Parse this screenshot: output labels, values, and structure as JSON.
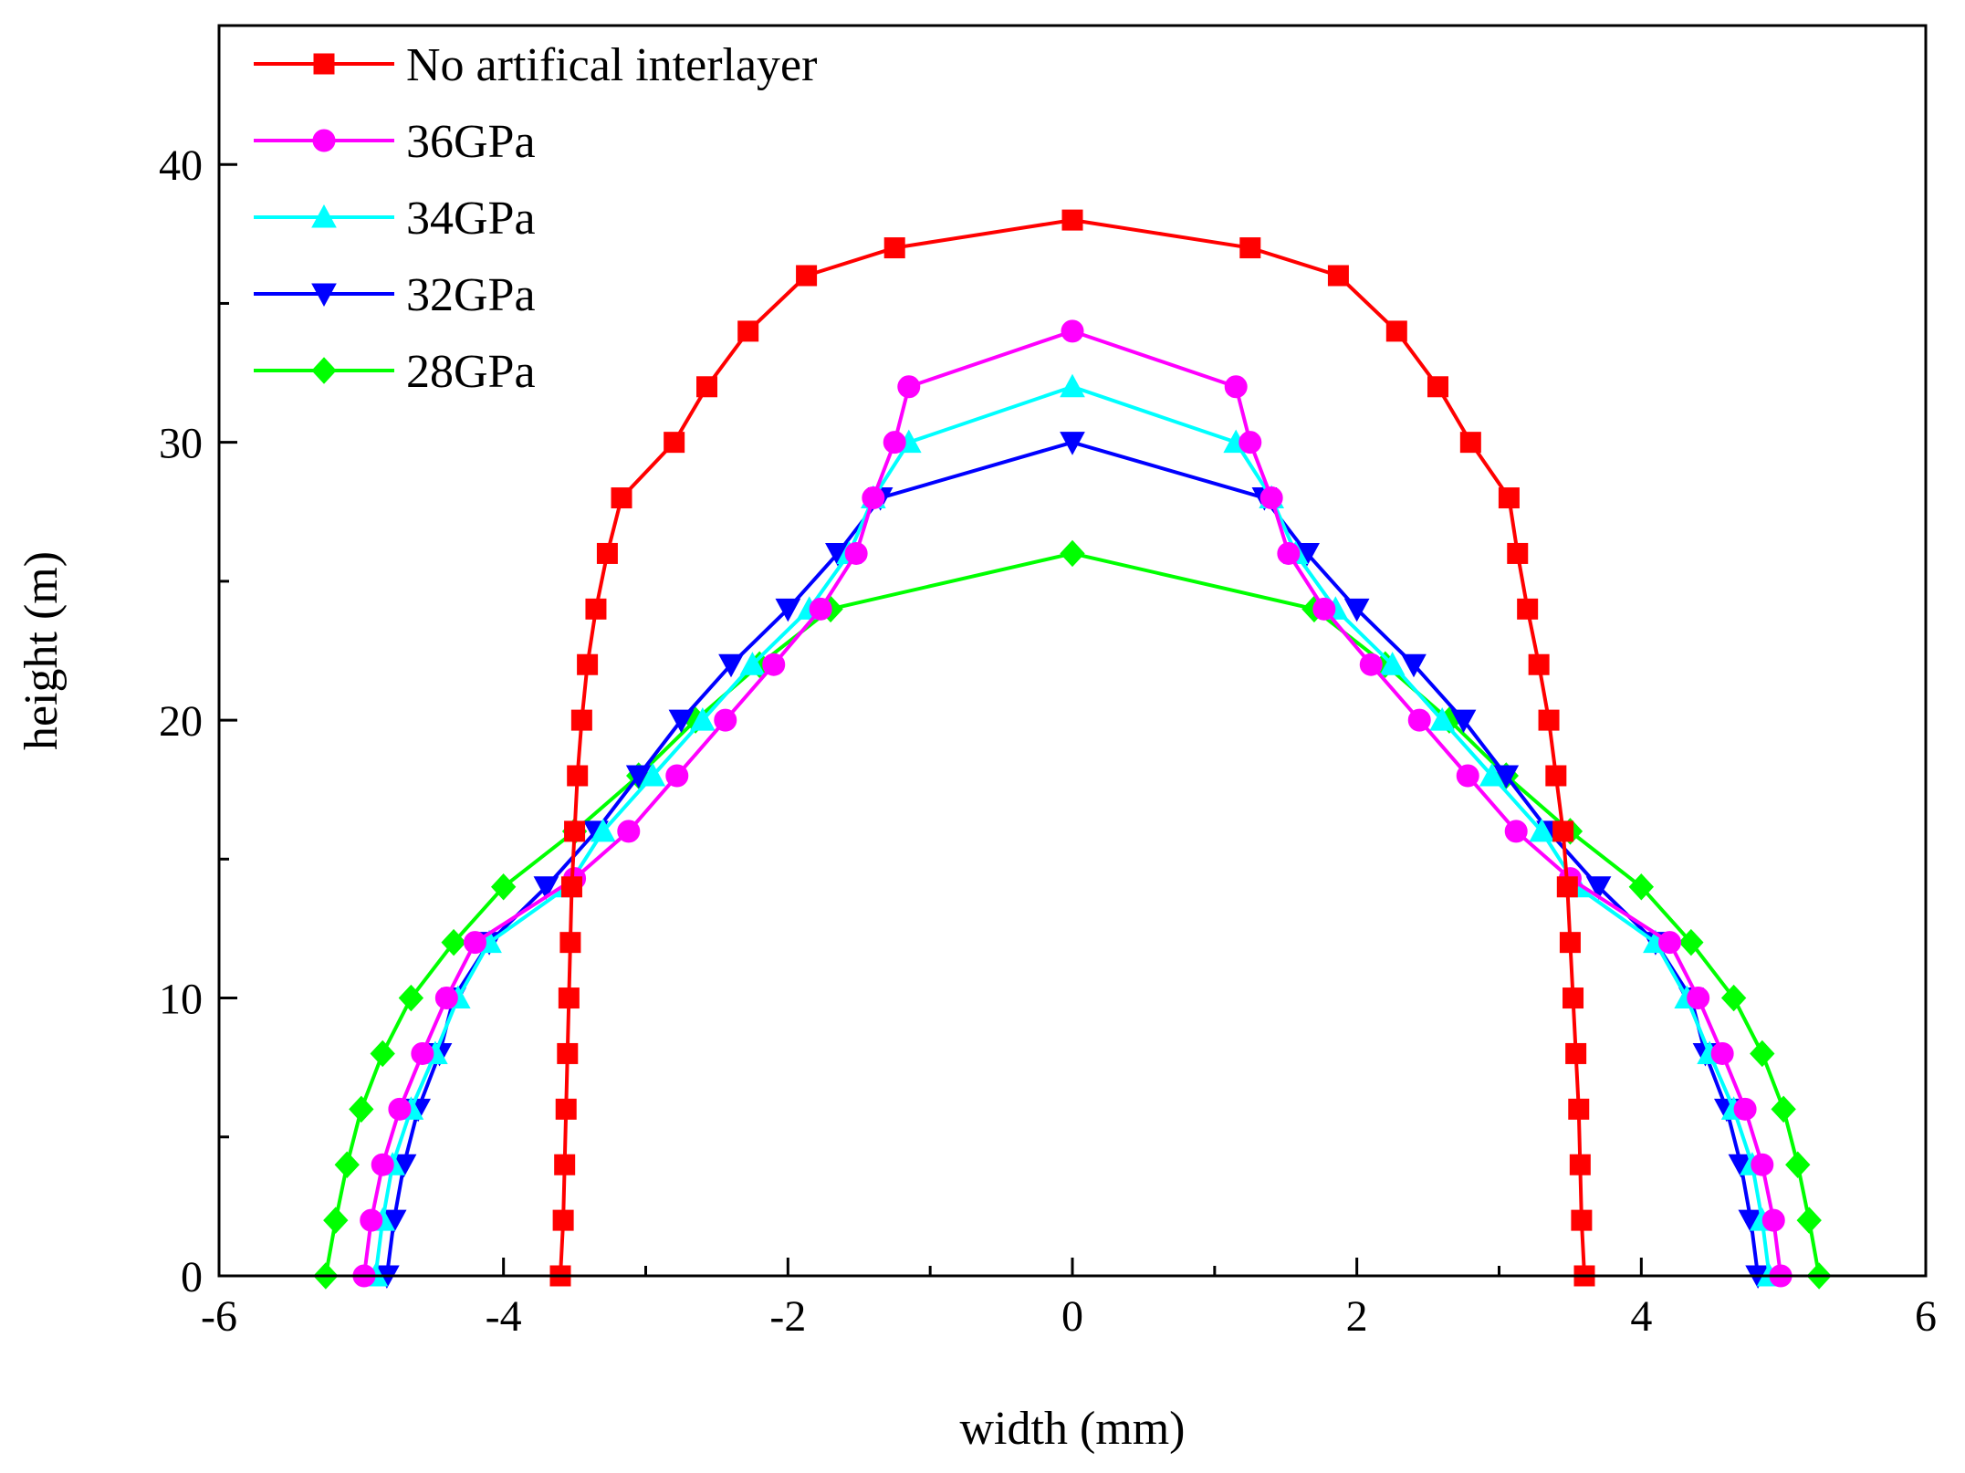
{
  "chart_data": {
    "type": "line",
    "title": "",
    "xlabel": "width (mm)",
    "ylabel": "height (m)",
    "xlim": [
      -6,
      6
    ],
    "ylim": [
      0,
      45
    ],
    "xticks": [
      -6,
      -4,
      -2,
      0,
      2,
      4,
      6
    ],
    "yticks": [
      0,
      10,
      20,
      30,
      40
    ],
    "xtick_labels": [
      "-6",
      "-4",
      "-2",
      "0",
      "2",
      "4",
      "6"
    ],
    "ytick_labels": [
      "0",
      "10",
      "20",
      "30",
      "40"
    ],
    "grid": false,
    "legend_position": "top-left",
    "series": [
      {
        "name": "No artifical interlayer",
        "color": "#ff0000",
        "marker": "square",
        "points": [
          [
            -3.6,
            0
          ],
          [
            -3.58,
            2
          ],
          [
            -3.57,
            4
          ],
          [
            -3.56,
            6
          ],
          [
            -3.55,
            8
          ],
          [
            -3.54,
            10
          ],
          [
            -3.53,
            12
          ],
          [
            -3.52,
            14
          ],
          [
            -3.5,
            16
          ],
          [
            -3.48,
            18
          ],
          [
            -3.45,
            20
          ],
          [
            -3.41,
            22
          ],
          [
            -3.35,
            24
          ],
          [
            -3.27,
            26
          ],
          [
            -3.17,
            28
          ],
          [
            -2.8,
            30
          ],
          [
            -2.57,
            32
          ],
          [
            -2.28,
            34
          ],
          [
            -1.87,
            36
          ],
          [
            -1.25,
            37
          ],
          [
            0,
            38
          ],
          [
            1.25,
            37
          ],
          [
            1.87,
            36
          ],
          [
            2.28,
            34
          ],
          [
            2.57,
            32
          ],
          [
            2.8,
            30
          ],
          [
            3.07,
            28
          ],
          [
            3.13,
            26
          ],
          [
            3.2,
            24
          ],
          [
            3.28,
            22
          ],
          [
            3.35,
            20
          ],
          [
            3.4,
            18
          ],
          [
            3.45,
            16
          ],
          [
            3.48,
            14
          ],
          [
            3.5,
            12
          ],
          [
            3.52,
            10
          ],
          [
            3.54,
            8
          ],
          [
            3.56,
            6
          ],
          [
            3.57,
            4
          ],
          [
            3.58,
            2
          ],
          [
            3.6,
            0
          ]
        ]
      },
      {
        "name": "36GPa",
        "color": "#ff00ff",
        "marker": "circle",
        "points": [
          [
            -4.98,
            0
          ],
          [
            -4.93,
            2
          ],
          [
            -4.85,
            4
          ],
          [
            -4.73,
            6
          ],
          [
            -4.57,
            8
          ],
          [
            -4.4,
            10
          ],
          [
            -4.2,
            12
          ],
          [
            -3.5,
            14.3
          ],
          [
            -3.12,
            16
          ],
          [
            -2.78,
            18
          ],
          [
            -2.44,
            20
          ],
          [
            -2.1,
            22
          ],
          [
            -1.77,
            24
          ],
          [
            -1.52,
            26
          ],
          [
            -1.4,
            28
          ],
          [
            -1.25,
            30
          ],
          [
            -1.15,
            32
          ],
          [
            0,
            34
          ],
          [
            1.15,
            32
          ],
          [
            1.25,
            30
          ],
          [
            1.4,
            28
          ],
          [
            1.52,
            26
          ],
          [
            1.77,
            24
          ],
          [
            2.1,
            22
          ],
          [
            2.44,
            20
          ],
          [
            2.78,
            18
          ],
          [
            3.12,
            16
          ],
          [
            3.5,
            14.3
          ],
          [
            4.2,
            12
          ],
          [
            4.4,
            10
          ],
          [
            4.57,
            8
          ],
          [
            4.73,
            6
          ],
          [
            4.85,
            4
          ],
          [
            4.93,
            2
          ],
          [
            4.98,
            0
          ]
        ]
      },
      {
        "name": "34GPa",
        "color": "#00ffff",
        "marker": "triangle-up",
        "points": [
          [
            -4.9,
            0
          ],
          [
            -4.85,
            2
          ],
          [
            -4.78,
            4
          ],
          [
            -4.65,
            6
          ],
          [
            -4.48,
            8
          ],
          [
            -4.32,
            10
          ],
          [
            -4.1,
            12
          ],
          [
            -3.55,
            14
          ],
          [
            -3.3,
            16
          ],
          [
            -2.95,
            18
          ],
          [
            -2.6,
            20
          ],
          [
            -2.25,
            22
          ],
          [
            -1.85,
            24
          ],
          [
            -1.57,
            26
          ],
          [
            -1.4,
            28
          ],
          [
            -1.15,
            30
          ],
          [
            0,
            32
          ],
          [
            1.15,
            30
          ],
          [
            1.4,
            28
          ],
          [
            1.57,
            26
          ],
          [
            1.85,
            24
          ],
          [
            2.25,
            22
          ],
          [
            2.6,
            20
          ],
          [
            2.95,
            18
          ],
          [
            3.3,
            16
          ],
          [
            3.55,
            14
          ],
          [
            4.1,
            12
          ],
          [
            4.32,
            10
          ],
          [
            4.48,
            8
          ],
          [
            4.65,
            6
          ],
          [
            4.78,
            4
          ],
          [
            4.85,
            2
          ],
          [
            4.9,
            0
          ]
        ]
      },
      {
        "name": "32GPa",
        "color": "#0000ff",
        "marker": "triangle-down",
        "points": [
          [
            -4.82,
            0
          ],
          [
            -4.77,
            2
          ],
          [
            -4.7,
            4
          ],
          [
            -4.6,
            6
          ],
          [
            -4.45,
            8
          ],
          [
            -4.35,
            10
          ],
          [
            -4.1,
            12
          ],
          [
            -3.7,
            14
          ],
          [
            -3.35,
            16
          ],
          [
            -3.05,
            18
          ],
          [
            -2.75,
            20
          ],
          [
            -2.4,
            22
          ],
          [
            -2.0,
            24
          ],
          [
            -1.65,
            26
          ],
          [
            -1.35,
            28
          ],
          [
            0,
            30
          ],
          [
            1.35,
            28
          ],
          [
            1.65,
            26
          ],
          [
            2.0,
            24
          ],
          [
            2.4,
            22
          ],
          [
            2.75,
            20
          ],
          [
            3.05,
            18
          ],
          [
            3.35,
            16
          ],
          [
            3.7,
            14
          ],
          [
            4.1,
            12
          ],
          [
            4.35,
            10
          ],
          [
            4.45,
            8
          ],
          [
            4.6,
            6
          ],
          [
            4.7,
            4
          ],
          [
            4.77,
            2
          ],
          [
            4.82,
            0
          ]
        ]
      },
      {
        "name": "28GPa",
        "color": "#00ff00",
        "marker": "diamond",
        "points": [
          [
            -5.25,
            0
          ],
          [
            -5.18,
            2
          ],
          [
            -5.1,
            4
          ],
          [
            -5.0,
            6
          ],
          [
            -4.85,
            8
          ],
          [
            -4.65,
            10
          ],
          [
            -4.35,
            12
          ],
          [
            -4.0,
            14
          ],
          [
            -3.5,
            16
          ],
          [
            -3.05,
            18
          ],
          [
            -2.65,
            20
          ],
          [
            -2.2,
            22
          ],
          [
            -1.7,
            24
          ],
          [
            0,
            26
          ],
          [
            1.7,
            24
          ],
          [
            2.2,
            22
          ],
          [
            2.65,
            20
          ],
          [
            3.05,
            18
          ],
          [
            3.5,
            16
          ],
          [
            4.0,
            14
          ],
          [
            4.35,
            12
          ],
          [
            4.65,
            10
          ],
          [
            4.85,
            8
          ],
          [
            5.0,
            6
          ],
          [
            5.1,
            4
          ],
          [
            5.18,
            2
          ],
          [
            5.25,
            0
          ]
        ]
      }
    ]
  }
}
